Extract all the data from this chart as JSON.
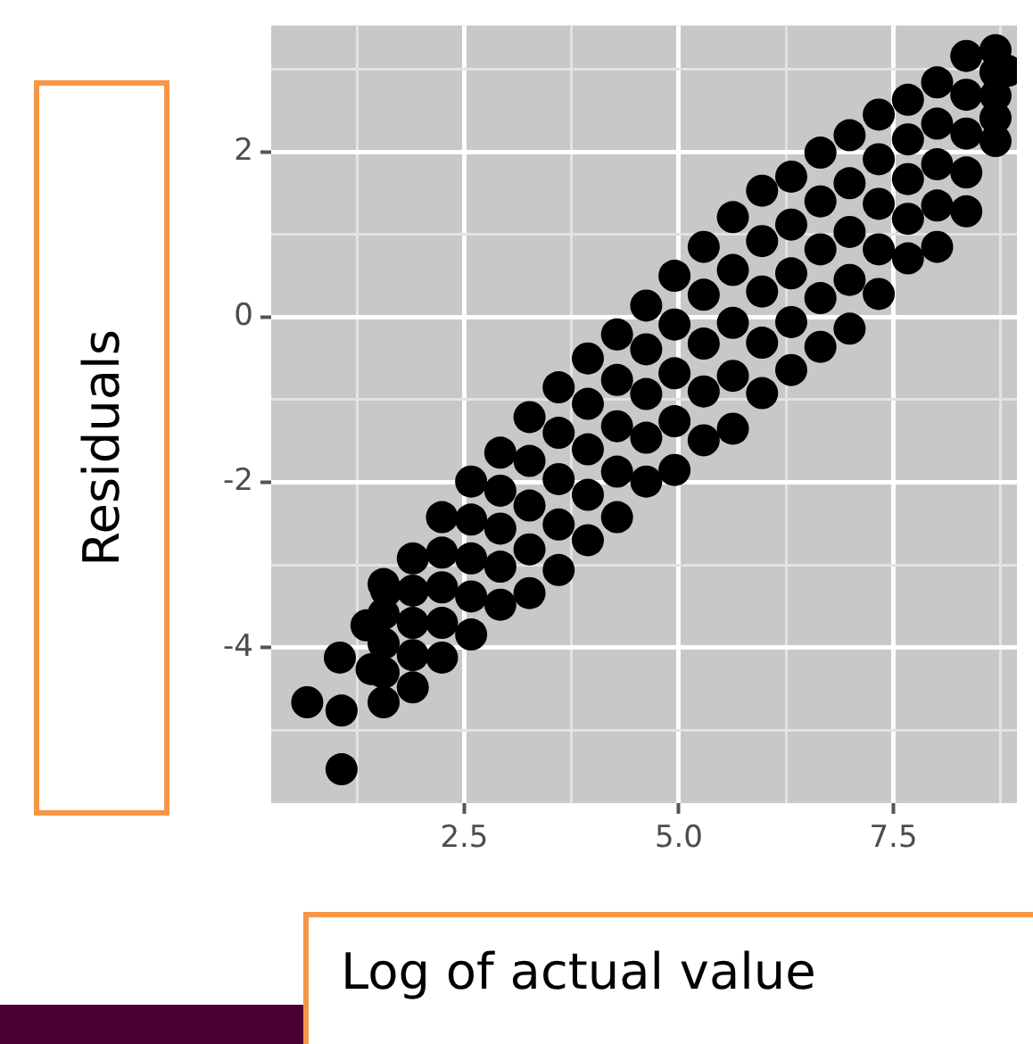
{
  "chart_data": {
    "type": "scatter",
    "xlabel": "Log of actual value",
    "ylabel": "Residuals",
    "xlim": [
      0.25,
      8.94
    ],
    "ylim": [
      -5.88,
      3.53
    ],
    "xticks": [
      {
        "value": 1.25,
        "label": null
      },
      {
        "value": 2.5,
        "label": "2.5"
      },
      {
        "value": 3.75,
        "label": null
      },
      {
        "value": 5,
        "label": "5.0"
      },
      {
        "value": 6.25,
        "label": null
      },
      7.5,
      {
        "value": 8.75,
        "label": null
      }
    ],
    "yticks": [
      {
        "value": -5,
        "label": null
      },
      -4,
      {
        "value": -3,
        "label": null
      },
      -2,
      {
        "value": -1,
        "label": null
      },
      0,
      {
        "value": 1,
        "label": null
      },
      2,
      {
        "value": 3,
        "label": null
      }
    ],
    "grid": true,
    "marker": "circle",
    "legend": false,
    "series": [
      {
        "color": "#000000",
        "x": [
          1.56,
          1.56,
          1.56,
          1.56,
          1.56,
          1.9,
          1.9,
          1.9,
          1.9,
          1.9,
          2.24,
          2.24,
          2.24,
          2.24,
          2.24,
          2.58,
          2.58,
          2.58,
          2.58,
          2.58,
          2.92,
          2.92,
          2.92,
          2.92,
          2.92,
          3.26,
          3.26,
          3.26,
          3.26,
          3.26,
          3.6,
          3.6,
          3.6,
          3.6,
          3.6,
          3.94,
          3.94,
          3.94,
          3.94,
          3.94,
          4.28,
          4.28,
          4.28,
          4.28,
          4.28,
          4.62,
          4.62,
          4.62,
          4.62,
          4.62,
          4.95,
          4.95,
          4.95,
          4.95,
          4.95,
          5.29,
          5.29,
          5.29,
          5.29,
          5.29,
          5.63,
          5.63,
          5.63,
          5.63,
          5.63,
          5.97,
          5.97,
          5.97,
          5.97,
          5.97,
          6.31,
          6.31,
          6.31,
          6.31,
          6.31,
          6.65,
          6.65,
          6.65,
          6.65,
          6.65,
          6.99,
          6.99,
          6.99,
          6.99,
          6.99,
          7.33,
          7.33,
          7.33,
          7.33,
          7.33,
          7.67,
          7.67,
          7.67,
          7.67,
          7.67,
          8.01,
          8.01,
          8.01,
          8.01,
          8.01,
          8.35,
          8.35,
          8.35,
          8.35,
          8.35,
          8.69,
          8.69,
          8.69,
          8.69,
          8.69,
          0.67,
          1.07,
          1.07,
          1.05,
          1.36,
          1.59,
          1.42,
          8.83
        ],
        "values": [
          -3.23,
          -3.59,
          -3.95,
          -4.3,
          -4.66,
          -2.92,
          -3.31,
          -3.7,
          -4.09,
          -4.48,
          -2.42,
          -2.85,
          -3.27,
          -3.7,
          -4.12,
          -1.99,
          -2.45,
          -2.92,
          -3.38,
          -3.84,
          -1.64,
          -2.1,
          -2.56,
          -3.02,
          -3.48,
          -1.21,
          -1.74,
          -2.28,
          -2.81,
          -3.34,
          -0.85,
          -1.4,
          -1.96,
          -2.51,
          -3.06,
          -0.5,
          -1.05,
          -1.6,
          -2.15,
          -2.7,
          -0.21,
          -0.76,
          -1.32,
          -1.87,
          -2.42,
          0.14,
          -0.39,
          -0.93,
          -1.46,
          -1.99,
          0.5,
          -0.09,
          -0.68,
          -1.26,
          -1.85,
          0.85,
          0.27,
          -0.32,
          -0.9,
          -1.49,
          1.21,
          0.57,
          -0.07,
          -0.71,
          -1.35,
          1.53,
          0.92,
          0.31,
          -0.31,
          -0.92,
          1.7,
          1.12,
          0.53,
          -0.06,
          -0.64,
          1.99,
          1.4,
          0.82,
          0.23,
          -0.36,
          2.2,
          1.62,
          1.03,
          0.45,
          -0.14,
          2.45,
          1.91,
          1.37,
          0.82,
          0.28,
          2.63,
          2.15,
          1.67,
          1.19,
          0.71,
          2.84,
          2.34,
          1.85,
          1.35,
          0.85,
          3.16,
          2.69,
          2.22,
          1.75,
          1.28,
          3.23,
          2.96,
          2.68,
          2.41,
          2.13,
          -4.66,
          -5.47,
          -4.76,
          -4.12,
          -3.73,
          -3.31,
          -4.26,
          2.98
        ]
      }
    ]
  }
}
